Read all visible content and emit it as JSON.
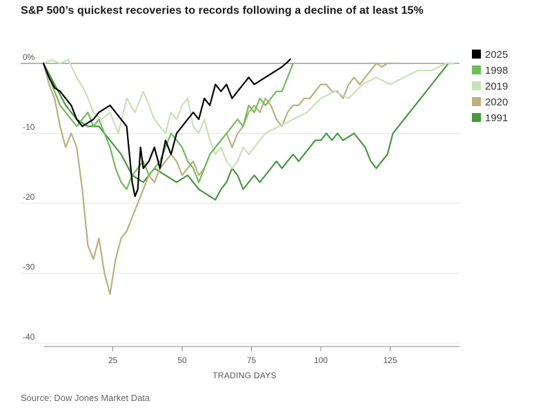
{
  "title": "S&P 500’s quickest recoveries to records following a decline of at least 15%",
  "source": "Source: Dow Jones Market Data",
  "chart_data": {
    "type": "line",
    "title": "S&P 500’s quickest recoveries to records following a decline of at least 15%",
    "xlabel": "TRADING DAYS",
    "ylabel": "",
    "xlim": [
      0,
      150
    ],
    "ylim": [
      -40,
      2
    ],
    "x_ticks": [
      25,
      50,
      75,
      100,
      125
    ],
    "y_ticks": [
      {
        "value": 0,
        "label": "0%"
      },
      {
        "value": -10,
        "label": "-10"
      },
      {
        "value": -20,
        "label": "-20"
      },
      {
        "value": -30,
        "label": "-30"
      },
      {
        "value": -40,
        "label": "-40"
      }
    ],
    "grid": true,
    "legend_position": "right",
    "series": [
      {
        "name": "2025",
        "color": "#000000",
        "x": [
          0,
          2,
          4,
          6,
          8,
          10,
          12,
          14,
          16,
          18,
          20,
          22,
          24,
          26,
          28,
          30,
          32,
          33,
          34,
          35,
          36,
          38,
          40,
          42,
          44,
          46,
          48,
          50,
          52,
          54,
          56,
          58,
          60,
          62,
          64,
          66,
          68,
          70,
          72,
          74,
          76,
          78,
          80,
          82,
          84,
          86,
          88,
          89
        ],
        "y": [
          0,
          -2,
          -3.5,
          -4,
          -5,
          -6,
          -8,
          -9,
          -8.5,
          -8,
          -7,
          -6.5,
          -6,
          -7,
          -8,
          -9,
          -17,
          -19,
          -18,
          -12,
          -15,
          -14,
          -12,
          -15,
          -11,
          -13,
          -10,
          -9,
          -8,
          -7,
          -8,
          -5,
          -6,
          -3,
          -4,
          -3,
          -5,
          -4,
          -3,
          -2,
          -3,
          -2.5,
          -2,
          -1.5,
          -1,
          -0.5,
          0.2,
          0.6
        ]
      },
      {
        "name": "1998",
        "color": "#6cbf57",
        "x": [
          0,
          2,
          4,
          6,
          8,
          10,
          12,
          14,
          16,
          18,
          20,
          22,
          24,
          26,
          28,
          30,
          32,
          34,
          36,
          38,
          40,
          42,
          44,
          46,
          48,
          50,
          52,
          54,
          56,
          58,
          60,
          62,
          64,
          66,
          68,
          70,
          72,
          74,
          76,
          78,
          80,
          82,
          84,
          86,
          88,
          90
        ],
        "y": [
          0,
          -2,
          -4,
          -6,
          -7,
          -8,
          -9,
          -8,
          -7,
          -9,
          -8,
          -10,
          -12,
          -15,
          -17,
          -18,
          -16,
          -15,
          -14,
          -16,
          -15,
          -14,
          -12,
          -10,
          -11,
          -12,
          -14,
          -15,
          -17,
          -15,
          -13,
          -12,
          -11,
          -10,
          -9,
          -8,
          -9,
          -6,
          -7,
          -5,
          -6,
          -5,
          -4,
          -4,
          -2,
          0
        ]
      },
      {
        "name": "2019",
        "color": "#c5e3b5",
        "x": [
          0,
          3,
          6,
          9,
          12,
          15,
          18,
          21,
          24,
          27,
          30,
          33,
          36,
          38,
          40,
          42,
          44,
          46,
          48,
          50,
          52,
          54,
          56,
          58,
          60,
          62,
          64,
          66,
          68,
          70,
          72,
          74,
          76,
          78,
          80,
          85,
          90,
          95,
          100,
          105,
          110,
          115,
          120,
          125,
          130,
          135,
          140,
          145,
          148
        ],
        "y": [
          0,
          0.5,
          0,
          0.5,
          -2,
          -4,
          -7,
          -8,
          -7,
          -10,
          -5,
          -7,
          -4,
          -6,
          -8,
          -9,
          -10,
          -7,
          -8,
          -6,
          -5,
          -9,
          -10,
          -8,
          -11,
          -13,
          -12,
          -14,
          -15,
          -14,
          -12,
          -13,
          -12,
          -11,
          -10,
          -9,
          -8,
          -7,
          -5,
          -4,
          -5,
          -3,
          -2,
          -3,
          -2,
          -1,
          -1,
          0,
          0
        ]
      },
      {
        "name": "2020",
        "color": "#b9b07a",
        "x": [
          0,
          2,
          4,
          6,
          8,
          10,
          12,
          14,
          16,
          18,
          20,
          22,
          24,
          26,
          28,
          30,
          32,
          34,
          36,
          38,
          40,
          42,
          44,
          46,
          48,
          50,
          52,
          54,
          56,
          58,
          60,
          62,
          64,
          66,
          68,
          70,
          72,
          74,
          76,
          78,
          80,
          82,
          84,
          86,
          88,
          90,
          92,
          94,
          96,
          98,
          100,
          102,
          104,
          106,
          108,
          110,
          112,
          114,
          116,
          118,
          120,
          122,
          124,
          126
        ],
        "y": [
          0,
          -3,
          -5,
          -9,
          -12,
          -10,
          -12,
          -18,
          -26,
          -28,
          -25,
          -30,
          -33,
          -28,
          -25,
          -24,
          -22,
          -20,
          -18,
          -16,
          -17,
          -15,
          -14,
          -13,
          -14,
          -16,
          -15,
          -14,
          -16,
          -15,
          -13,
          -12,
          -11,
          -10,
          -12,
          -10,
          -9,
          -7,
          -6,
          -7,
          -5,
          -6,
          -8,
          -9,
          -7,
          -6,
          -6,
          -5,
          -5,
          -4,
          -3,
          -3,
          -4,
          -4,
          -5,
          -3,
          -2,
          -3,
          -2,
          -1,
          0,
          -0.5,
          0,
          0
        ]
      },
      {
        "name": "1991",
        "color": "#469a3e",
        "x": [
          0,
          4,
          8,
          12,
          16,
          20,
          24,
          28,
          32,
          36,
          40,
          44,
          48,
          52,
          56,
          60,
          62,
          64,
          66,
          68,
          70,
          72,
          74,
          76,
          78,
          80,
          82,
          84,
          86,
          88,
          90,
          92,
          94,
          96,
          98,
          100,
          102,
          104,
          106,
          108,
          110,
          112,
          114,
          116,
          118,
          120,
          122,
          124,
          126,
          128,
          130,
          132,
          134,
          136,
          138,
          140,
          142,
          144,
          146,
          148
        ],
        "y": [
          0,
          -3,
          -6,
          -8,
          -9,
          -9,
          -11,
          -13,
          -16,
          -17,
          -15,
          -16,
          -17,
          -16,
          -18,
          -19,
          -19.5,
          -18,
          -17,
          -15,
          -16,
          -18,
          -17,
          -16,
          -17,
          -16,
          -15,
          -14,
          -15,
          -14,
          -13,
          -14,
          -13,
          -12,
          -11,
          -11,
          -10,
          -11,
          -10,
          -11,
          -10.5,
          -10,
          -11,
          -12,
          -14,
          -15,
          -14,
          -13,
          -10,
          -9,
          -8,
          -7,
          -6,
          -5,
          -4,
          -3,
          -2,
          -1,
          0,
          0
        ]
      }
    ]
  }
}
